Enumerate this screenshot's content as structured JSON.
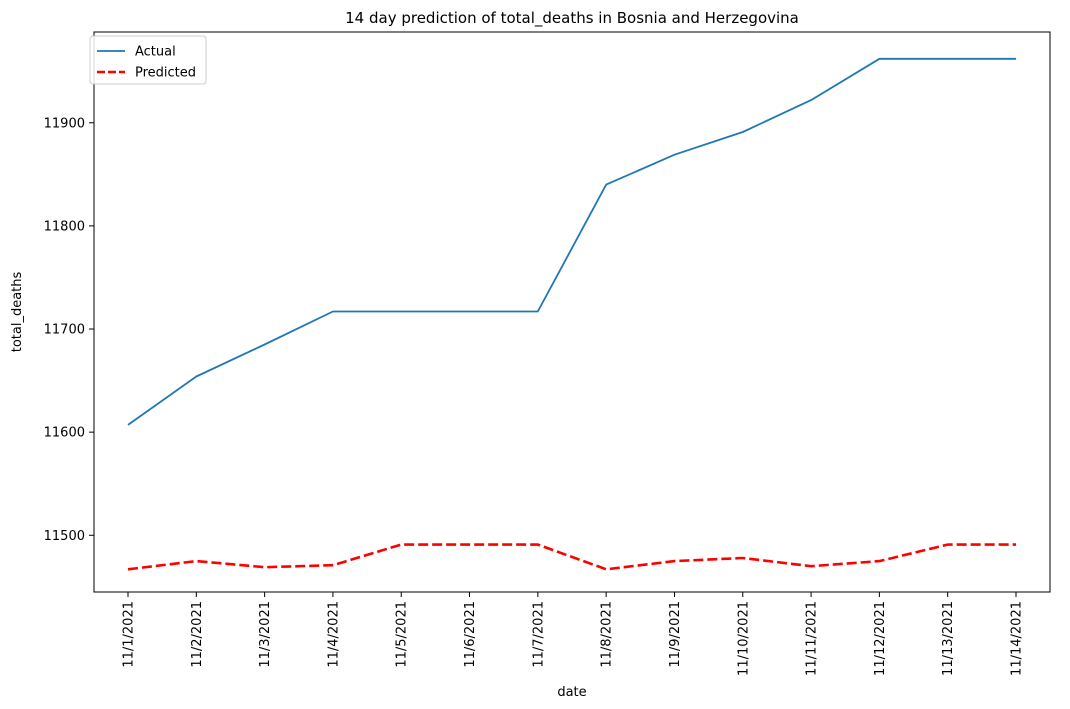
{
  "chart_data": {
    "type": "line",
    "title": "14 day prediction of total_deaths in Bosnia and Herzegovina",
    "xlabel": "date",
    "ylabel": "total_deaths",
    "categories": [
      "11/1/2021",
      "11/2/2021",
      "11/3/2021",
      "11/4/2021",
      "11/5/2021",
      "11/6/2021",
      "11/7/2021",
      "11/8/2021",
      "11/9/2021",
      "11/10/2021",
      "11/11/2021",
      "11/12/2021",
      "11/13/2021",
      "11/14/2021"
    ],
    "yticks": [
      11500,
      11600,
      11700,
      11800,
      11900
    ],
    "ylim": [
      11445,
      11988
    ],
    "legend_position": "top-left",
    "grid": false,
    "series": [
      {
        "name": "Actual",
        "color": "#1f77b4",
        "style": "solid",
        "values": [
          11607,
          11654,
          11685,
          11717,
          11717,
          11717,
          11717,
          11840,
          11869,
          11891,
          11922,
          11962,
          11962,
          11962
        ]
      },
      {
        "name": "Predicted",
        "color": "#ff0000",
        "style": "dashed",
        "values": [
          11467,
          11475,
          11469,
          11471,
          11491,
          11491,
          11491,
          11467,
          11475,
          11478,
          11470,
          11475,
          11491,
          11491
        ]
      }
    ]
  }
}
